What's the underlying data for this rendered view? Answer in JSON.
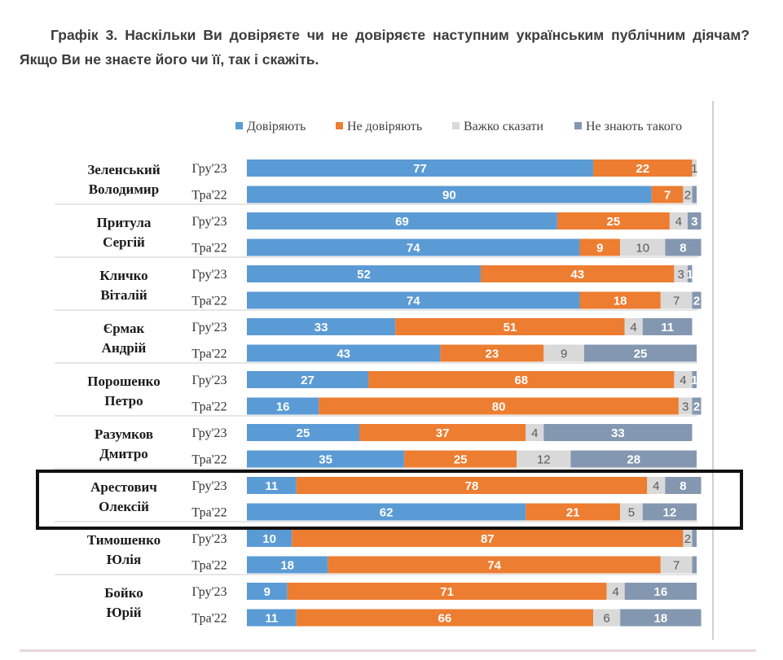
{
  "heading": "Графік 3. Наскільки Ви довіряєте чи не довіряєте наступним українським публічним діячам? Якщо Ви не знаєте його чи її, так і скажіть.",
  "colors": {
    "trust": "#5b9bd5",
    "distrust": "#ed7d31",
    "hard": "#d9d9d9",
    "unknown": "#8497b0"
  },
  "chart_data": {
    "type": "bar",
    "orientation": "horizontal",
    "stacked": true,
    "xlim": [
      0,
      100
    ],
    "legend_position": "top",
    "series": [
      {
        "name": "Довіряють",
        "key": "trust"
      },
      {
        "name": "Не довіряють",
        "key": "distrust"
      },
      {
        "name": "Важко сказати",
        "key": "hard"
      },
      {
        "name": "Не знають такого",
        "key": "unknown"
      }
    ],
    "groups": [
      {
        "person": [
          "Зеленський",
          "Володимир"
        ],
        "rows": [
          {
            "period": "Гру'23",
            "values": [
              77,
              22,
              1,
              0
            ],
            "labels": [
              "77",
              "22",
              "1",
              ""
            ]
          },
          {
            "period": "Тра'22",
            "values": [
              90,
              7,
              2,
              1
            ],
            "labels": [
              "90",
              "7",
              "2",
              ""
            ]
          }
        ]
      },
      {
        "person": [
          "Притула",
          "Сергій"
        ],
        "rows": [
          {
            "period": "Гру'23",
            "values": [
              69,
              25,
              4,
              3
            ],
            "labels": [
              "69",
              "25",
              "4",
              "3"
            ]
          },
          {
            "period": "Тра'22",
            "values": [
              74,
              9,
              10,
              8
            ],
            "labels": [
              "74",
              "9",
              "10",
              "8"
            ]
          }
        ]
      },
      {
        "person": [
          "Кличко",
          "Віталій"
        ],
        "rows": [
          {
            "period": "Гру'23",
            "values": [
              52,
              43,
              3,
              1
            ],
            "labels": [
              "52",
              "43",
              "3",
              "1"
            ]
          },
          {
            "period": "Тра'22",
            "values": [
              74,
              18,
              7,
              2
            ],
            "labels": [
              "74",
              "18",
              "7",
              "2"
            ]
          }
        ]
      },
      {
        "person": [
          "Єрмак",
          "Андрій"
        ],
        "rows": [
          {
            "period": "Гру'23",
            "values": [
              33,
              51,
              4,
              11
            ],
            "labels": [
              "33",
              "51",
              "4",
              "11"
            ]
          },
          {
            "period": "Тра'22",
            "values": [
              43,
              23,
              9,
              25
            ],
            "labels": [
              "43",
              "23",
              "9",
              "25"
            ]
          }
        ]
      },
      {
        "person": [
          "Порошенко",
          "Петро"
        ],
        "rows": [
          {
            "period": "Гру'23",
            "values": [
              27,
              68,
              4,
              1
            ],
            "labels": [
              "27",
              "68",
              "4",
              "1"
            ]
          },
          {
            "period": "Тра'22",
            "values": [
              16,
              80,
              3,
              2
            ],
            "labels": [
              "16",
              "80",
              "3",
              "2"
            ]
          }
        ]
      },
      {
        "person": [
          "Разумков",
          "Дмитро"
        ],
        "rows": [
          {
            "period": "Гру'23",
            "values": [
              25,
              37,
              4,
              33
            ],
            "labels": [
              "25",
              "37",
              "4",
              "33"
            ]
          },
          {
            "period": "Тра'22",
            "values": [
              35,
              25,
              12,
              28
            ],
            "labels": [
              "35",
              "25",
              "12",
              "28"
            ]
          }
        ]
      },
      {
        "person": [
          "Арестович",
          "Олексій"
        ],
        "highlighted": true,
        "rows": [
          {
            "period": "Гру'23",
            "values": [
              11,
              78,
              4,
              8
            ],
            "labels": [
              "11",
              "78",
              "4",
              "8"
            ]
          },
          {
            "period": "Тра'22",
            "values": [
              62,
              21,
              5,
              12
            ],
            "labels": [
              "62",
              "21",
              "5",
              "12"
            ]
          }
        ]
      },
      {
        "person": [
          "Тимошенко",
          "Юлія"
        ],
        "rows": [
          {
            "period": "Гру'23",
            "values": [
              10,
              87,
              2,
              1
            ],
            "labels": [
              "10",
              "87",
              "2",
              ""
            ]
          },
          {
            "period": "Тра'22",
            "values": [
              18,
              74,
              7,
              1
            ],
            "labels": [
              "18",
              "74",
              "7",
              ""
            ]
          }
        ]
      },
      {
        "person": [
          "Бойко",
          "Юрій"
        ],
        "rows": [
          {
            "period": "Гру'23",
            "values": [
              9,
              71,
              4,
              16
            ],
            "labels": [
              "9",
              "71",
              "4",
              "16"
            ]
          },
          {
            "period": "Тра'22",
            "values": [
              11,
              66,
              6,
              18
            ],
            "labels": [
              "11",
              "66",
              "6",
              "18"
            ]
          }
        ]
      }
    ]
  }
}
